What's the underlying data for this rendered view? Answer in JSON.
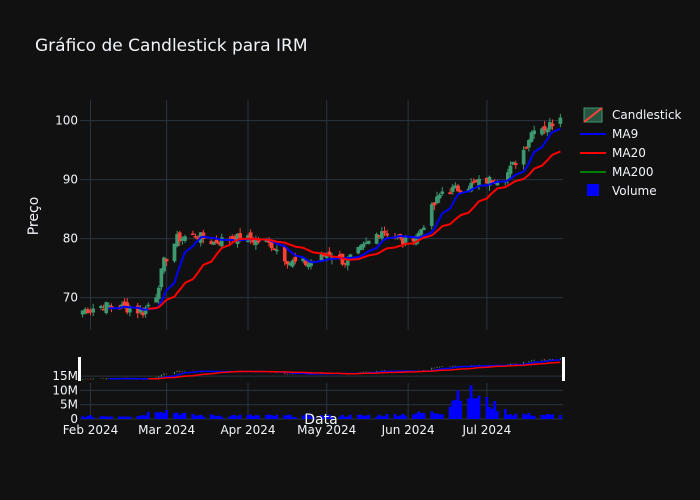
{
  "chart_data": {
    "type": "candlestick",
    "title": "Gráfico de Candlestick para IRM",
    "ylabel": "Preço",
    "xlabel": "Data",
    "ylim": [
      64.5,
      103.5
    ],
    "yticks": [
      70,
      80,
      90,
      100
    ],
    "volume_ticks": [
      {
        "value": 0,
        "label": "0"
      },
      {
        "value": 5000000,
        "label": "5M"
      },
      {
        "value": 10000000,
        "label": "10M"
      },
      {
        "value": 15000000,
        "label": "15M"
      }
    ],
    "xlim": [
      "2024-01-28",
      "2024-07-30"
    ],
    "xticks": [
      {
        "date": "2024-02-01",
        "label": "Feb 2024"
      },
      {
        "date": "2024-03-01",
        "label": "Mar 2024"
      },
      {
        "date": "2024-04-01",
        "label": "Apr 2024"
      },
      {
        "date": "2024-05-01",
        "label": "May 2024"
      },
      {
        "date": "2024-06-01",
        "label": "Jun 2024"
      },
      {
        "date": "2024-07-01",
        "label": "Jul 2024"
      }
    ],
    "grid": true,
    "legend_position": "right",
    "colors": {
      "increasing": "#3d9970",
      "decreasing": "#ff4136",
      "ma9": "#0000ff",
      "ma20": "#ff0000",
      "ma200": "#008000",
      "volume": "#0000ff"
    },
    "series": [
      {
        "name": "Candlestick",
        "kind": "candlestick"
      },
      {
        "name": "MA9",
        "kind": "line"
      },
      {
        "name": "MA20",
        "kind": "line"
      },
      {
        "name": "MA200",
        "kind": "line"
      },
      {
        "name": "Volume",
        "kind": "bar"
      }
    ],
    "price_anchors": [
      [
        "2024-01-29",
        67.8
      ],
      [
        "2024-02-06",
        68.6
      ],
      [
        "2024-02-14",
        68.3
      ],
      [
        "2024-02-21",
        67.6
      ],
      [
        "2024-02-26",
        70.5
      ],
      [
        "2024-02-29",
        76.0
      ],
      [
        "2024-03-05",
        80.0
      ],
      [
        "2024-03-12",
        80.6
      ],
      [
        "2024-03-19",
        79.4
      ],
      [
        "2024-03-26",
        80.2
      ],
      [
        "2024-04-03",
        79.8
      ],
      [
        "2024-04-10",
        79.0
      ],
      [
        "2024-04-17",
        76.0
      ],
      [
        "2024-04-24",
        75.8
      ],
      [
        "2024-05-02",
        77.5
      ],
      [
        "2024-05-08",
        76.0
      ],
      [
        "2024-05-15",
        78.5
      ],
      [
        "2024-05-22",
        81.5
      ],
      [
        "2024-05-30",
        79.5
      ],
      [
        "2024-06-05",
        80.8
      ],
      [
        "2024-06-10",
        85.0
      ],
      [
        "2024-06-14",
        88.0
      ],
      [
        "2024-06-21",
        88.5
      ],
      [
        "2024-06-28",
        89.5
      ],
      [
        "2024-07-08",
        90.5
      ],
      [
        "2024-07-15",
        95.0
      ],
      [
        "2024-07-19",
        99.0
      ],
      [
        "2024-07-24",
        98.8
      ],
      [
        "2024-07-29",
        101.0
      ]
    ],
    "volume_anchors": [
      [
        "2024-01-29",
        900000
      ],
      [
        "2024-02-20",
        1200000
      ],
      [
        "2024-02-27",
        3500000
      ],
      [
        "2024-03-10",
        1300000
      ],
      [
        "2024-04-20",
        1100000
      ],
      [
        "2024-05-20",
        1200000
      ],
      [
        "2024-06-14",
        2400000
      ],
      [
        "2024-06-21",
        10500000
      ],
      [
        "2024-07-10",
        1800000
      ],
      [
        "2024-07-29",
        1200000
      ]
    ]
  }
}
